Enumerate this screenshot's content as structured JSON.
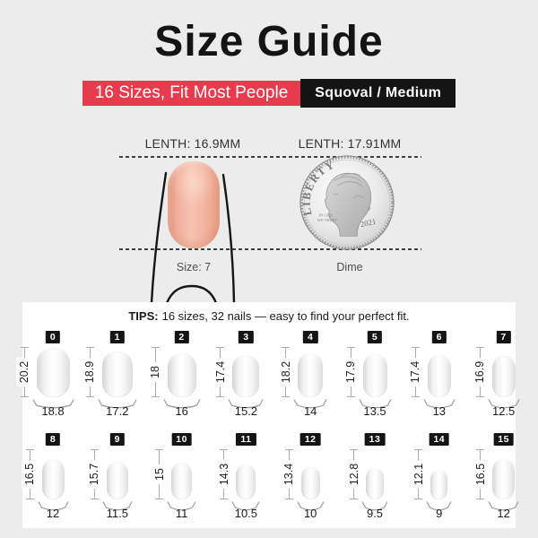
{
  "header": {
    "title": "Size Guide",
    "banner_left": "16 Sizes, Fit Most People",
    "banner_right": "Squoval / Medium"
  },
  "colors": {
    "background": "#ececec",
    "panel": "#ffffff",
    "accent_red": "#e73c4e",
    "banner_black": "#141414",
    "nail_pink": "#f3b6a2"
  },
  "comparison": {
    "nail": {
      "length_label": "LENTH: 16.9MM",
      "caption": "Size: 7"
    },
    "dime": {
      "length_label": "LENTH: 17.91MM",
      "caption": "Dime",
      "coin_texts": {
        "liberty": "LIBERTY",
        "motto_line1": "IN GOD",
        "motto_line2": "WE TRUST",
        "mint_mark": "P",
        "year": "2021"
      }
    }
  },
  "tips": {
    "prefix": "TIPS:",
    "text": "16 sizes, 32 nails — easy to find your perfect fit."
  },
  "size_chart": {
    "sizes": [
      {
        "id": "0",
        "length_mm": "20.2",
        "width_mm": "18.8"
      },
      {
        "id": "1",
        "length_mm": "18.9",
        "width_mm": "17.2"
      },
      {
        "id": "2",
        "length_mm": "18",
        "width_mm": "16"
      },
      {
        "id": "3",
        "length_mm": "17.4",
        "width_mm": "15.2"
      },
      {
        "id": "4",
        "length_mm": "18.2",
        "width_mm": "14"
      },
      {
        "id": "5",
        "length_mm": "17.9",
        "width_mm": "13.5"
      },
      {
        "id": "6",
        "length_mm": "17.4",
        "width_mm": "13"
      },
      {
        "id": "7",
        "length_mm": "16.9",
        "width_mm": "12.5"
      },
      {
        "id": "8",
        "length_mm": "16.5",
        "width_mm": "12"
      },
      {
        "id": "9",
        "length_mm": "15.7",
        "width_mm": "11.5"
      },
      {
        "id": "10",
        "length_mm": "15",
        "width_mm": "11"
      },
      {
        "id": "11",
        "length_mm": "14.3",
        "width_mm": "10.5"
      },
      {
        "id": "12",
        "length_mm": "13.4",
        "width_mm": "10"
      },
      {
        "id": "13",
        "length_mm": "12.8",
        "width_mm": "9.5"
      },
      {
        "id": "14",
        "length_mm": "12.1",
        "width_mm": "9"
      },
      {
        "id": "15",
        "length_mm": "16.5",
        "width_mm": "12"
      }
    ]
  }
}
